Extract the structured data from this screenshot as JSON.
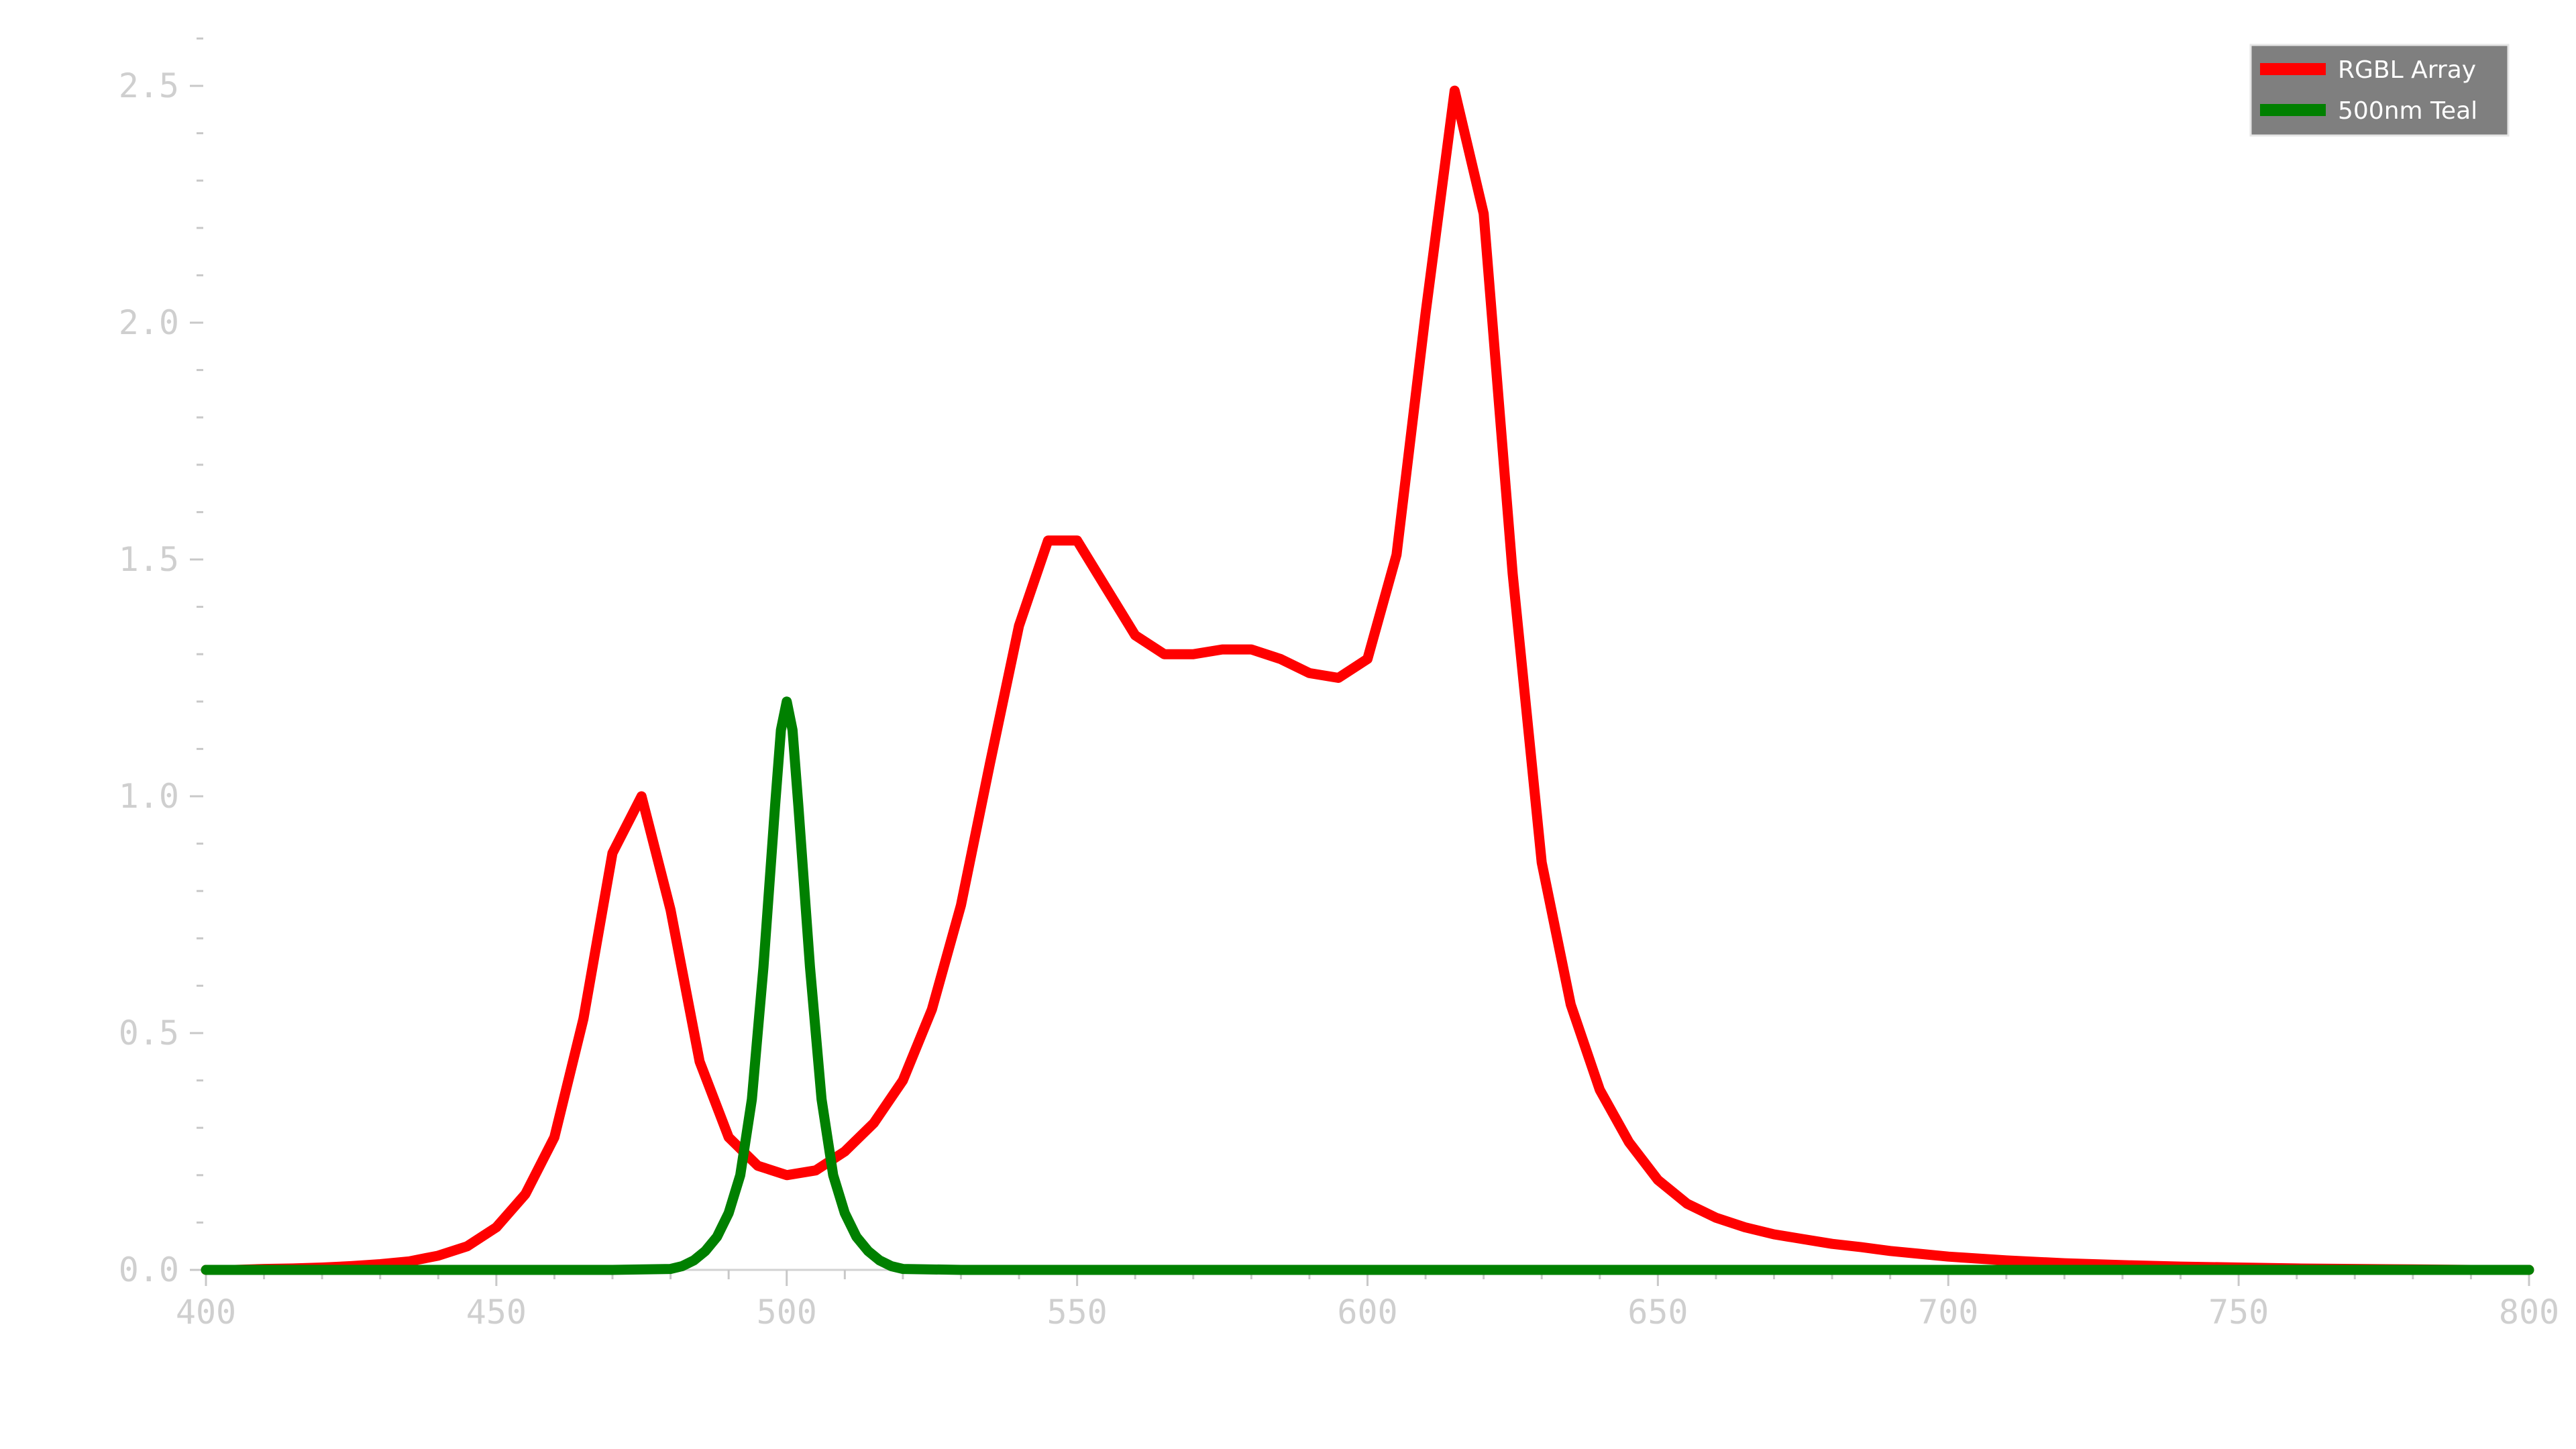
{
  "chart_data": {
    "type": "line",
    "title": "",
    "xlabel": "",
    "ylabel": "",
    "xlim": [
      400,
      800
    ],
    "ylim": [
      0,
      2.6
    ],
    "grid": false,
    "legend_position": "top-right",
    "x_ticks": [
      "400",
      "450",
      "500",
      "550",
      "600",
      "650",
      "700",
      "750",
      "800"
    ],
    "y_ticks": [
      "0.0",
      "0.5",
      "1.0",
      "1.5",
      "2.0",
      "2.5"
    ],
    "series": [
      {
        "name": "RGBL Array",
        "color": "#ff0000",
        "x": [
          400,
          405,
          410,
          415,
          420,
          425,
          430,
          435,
          440,
          445,
          450,
          455,
          460,
          465,
          470,
          475,
          480,
          485,
          490,
          495,
          500,
          505,
          510,
          515,
          520,
          525,
          530,
          535,
          540,
          545,
          550,
          555,
          560,
          565,
          570,
          575,
          580,
          585,
          590,
          595,
          600,
          605,
          610,
          615,
          620,
          625,
          630,
          635,
          640,
          645,
          650,
          655,
          660,
          665,
          670,
          675,
          680,
          685,
          690,
          695,
          700,
          710,
          720,
          730,
          740,
          750,
          760,
          770,
          780,
          790,
          800
        ],
        "y": [
          0.0,
          0.0,
          0.002,
          0.003,
          0.005,
          0.008,
          0.012,
          0.018,
          0.03,
          0.05,
          0.09,
          0.16,
          0.28,
          0.53,
          0.88,
          1.0,
          0.76,
          0.44,
          0.28,
          0.22,
          0.2,
          0.21,
          0.25,
          0.31,
          0.4,
          0.55,
          0.77,
          1.07,
          1.36,
          1.54,
          1.54,
          1.44,
          1.34,
          1.3,
          1.3,
          1.31,
          1.31,
          1.29,
          1.26,
          1.25,
          1.29,
          1.51,
          2.02,
          2.49,
          2.23,
          1.47,
          0.86,
          0.56,
          0.38,
          0.27,
          0.19,
          0.14,
          0.11,
          0.09,
          0.075,
          0.065,
          0.055,
          0.048,
          0.04,
          0.034,
          0.028,
          0.02,
          0.014,
          0.01,
          0.007,
          0.005,
          0.003,
          0.002,
          0.001,
          0.0,
          0.0
        ]
      },
      {
        "name": "500nm Teal",
        "color": "#008000",
        "x": [
          400,
          470,
          480,
          482,
          484,
          486,
          488,
          490,
          492,
          494,
          496,
          498,
          499,
          500,
          501,
          502,
          504,
          506,
          508,
          510,
          512,
          514,
          516,
          518,
          520,
          530,
          560,
          650,
          800
        ],
        "y": [
          0.0,
          0.0,
          0.002,
          0.008,
          0.02,
          0.04,
          0.07,
          0.12,
          0.2,
          0.36,
          0.64,
          0.98,
          1.14,
          1.2,
          1.14,
          0.98,
          0.64,
          0.36,
          0.2,
          0.12,
          0.07,
          0.04,
          0.02,
          0.008,
          0.002,
          0.0,
          0.0,
          0.0,
          0.0
        ]
      }
    ]
  }
}
